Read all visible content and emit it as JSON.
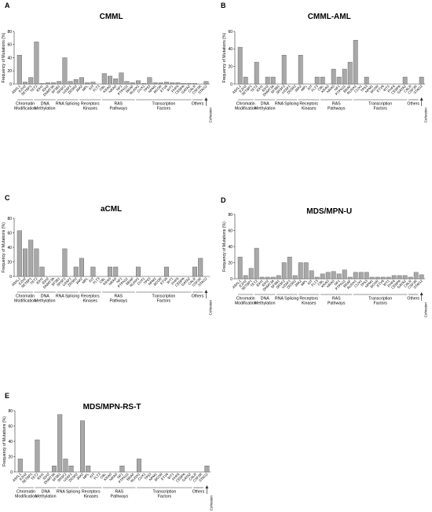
{
  "figure": {
    "genes": [
      "ASXL1",
      "EZH2",
      "SETBP1",
      "TET2",
      "IDH1",
      "IDH2",
      "DNMT3A",
      "SF3B1",
      "SRSF2",
      "U2AF1",
      "ZRSR2",
      "JAK2",
      "MPL",
      "KIT",
      "FLT3",
      "CBL",
      "KRAS",
      "NRAS",
      "NF1",
      "PTPN11",
      "BRAF",
      "RUNX1",
      "CUX1",
      "TP53",
      "NPM1",
      "BCOR",
      "ETV6",
      "WT1",
      "PHF6",
      "CEBPA",
      "GATA2",
      "CALR",
      "CSF3R",
      "STAG2"
    ],
    "groups": [
      {
        "label": "Chromatin Modification",
        "start": 0,
        "end": 2
      },
      {
        "label": "DNA Methylation",
        "start": 3,
        "end": 6
      },
      {
        "label": "RNA Splicing",
        "start": 7,
        "end": 10
      },
      {
        "label": "Receptors Kinases",
        "start": 11,
        "end": 14
      },
      {
        "label": "RAS Pathways",
        "start": 15,
        "end": 20
      },
      {
        "label": "Transcription Factors",
        "start": 21,
        "end": 30
      },
      {
        "label": "Others",
        "start": 31,
        "end": 32
      }
    ],
    "cohesion_label": "Cohesion",
    "colors": {
      "bar_fill": "#a8a8a8",
      "bar_stroke": "#555555",
      "axis": "#333333"
    }
  },
  "chart_data": [
    {
      "type": "bar",
      "panel": "A",
      "title": "CMML",
      "ylabel": "Frequency of Mutations (%)",
      "ylim": [
        0,
        80
      ],
      "yticks": [
        0,
        20,
        40,
        60,
        80
      ],
      "values": [
        44,
        3,
        10,
        64,
        1,
        2,
        2,
        4,
        40,
        4,
        7,
        10,
        2,
        3,
        0,
        16,
        12,
        8,
        17,
        4,
        2,
        5,
        1,
        10,
        2,
        2,
        3,
        2,
        2,
        1,
        1,
        1,
        0,
        4
      ]
    },
    {
      "type": "bar",
      "panel": "B",
      "title": "CMML-AML",
      "ylabel": "Frequency of Mutations (%)",
      "ylim": [
        0,
        60
      ],
      "yticks": [
        0,
        20,
        40,
        60
      ],
      "values": [
        42,
        8,
        0,
        25,
        0,
        8,
        8,
        0,
        33,
        0,
        0,
        33,
        0,
        0,
        8,
        8,
        0,
        17,
        8,
        17,
        25,
        50,
        0,
        8,
        0,
        0,
        0,
        0,
        0,
        0,
        8,
        0,
        0,
        8
      ]
    },
    {
      "type": "bar",
      "panel": "C",
      "title": "aCML",
      "ylabel": "Frequency of Mutations (%)",
      "ylim": [
        0,
        80
      ],
      "yticks": [
        0,
        20,
        40,
        60,
        80
      ],
      "values": [
        63,
        38,
        50,
        38,
        13,
        0,
        0,
        0,
        38,
        0,
        13,
        25,
        0,
        13,
        0,
        0,
        13,
        13,
        0,
        0,
        0,
        13,
        0,
        0,
        0,
        0,
        13,
        0,
        0,
        0,
        0,
        13,
        25,
        0
      ]
    },
    {
      "type": "bar",
      "panel": "D",
      "title": "MDS/MPN-U",
      "ylabel": "Frequency of Mutations (%)",
      "ylim": [
        0,
        80
      ],
      "yticks": [
        0,
        20,
        40,
        60,
        80
      ],
      "values": [
        27,
        4,
        13,
        38,
        2,
        2,
        2,
        4,
        20,
        27,
        4,
        20,
        20,
        10,
        2,
        6,
        8,
        9,
        6,
        11,
        2,
        8,
        8,
        8,
        2,
        2,
        2,
        2,
        4,
        4,
        4,
        2,
        8,
        5
      ]
    },
    {
      "type": "bar",
      "panel": "E",
      "title": "MDS/MPN-RS-T",
      "ylabel": "Frequency of Mutations (%)",
      "ylim": [
        0,
        80
      ],
      "yticks": [
        0,
        20,
        40,
        60,
        80
      ],
      "values": [
        17,
        0,
        0,
        42,
        0,
        0,
        8,
        75,
        17,
        8,
        0,
        67,
        8,
        0,
        0,
        0,
        0,
        0,
        8,
        0,
        0,
        17,
        0,
        0,
        0,
        0,
        0,
        0,
        0,
        0,
        0,
        0,
        0,
        8
      ]
    }
  ]
}
